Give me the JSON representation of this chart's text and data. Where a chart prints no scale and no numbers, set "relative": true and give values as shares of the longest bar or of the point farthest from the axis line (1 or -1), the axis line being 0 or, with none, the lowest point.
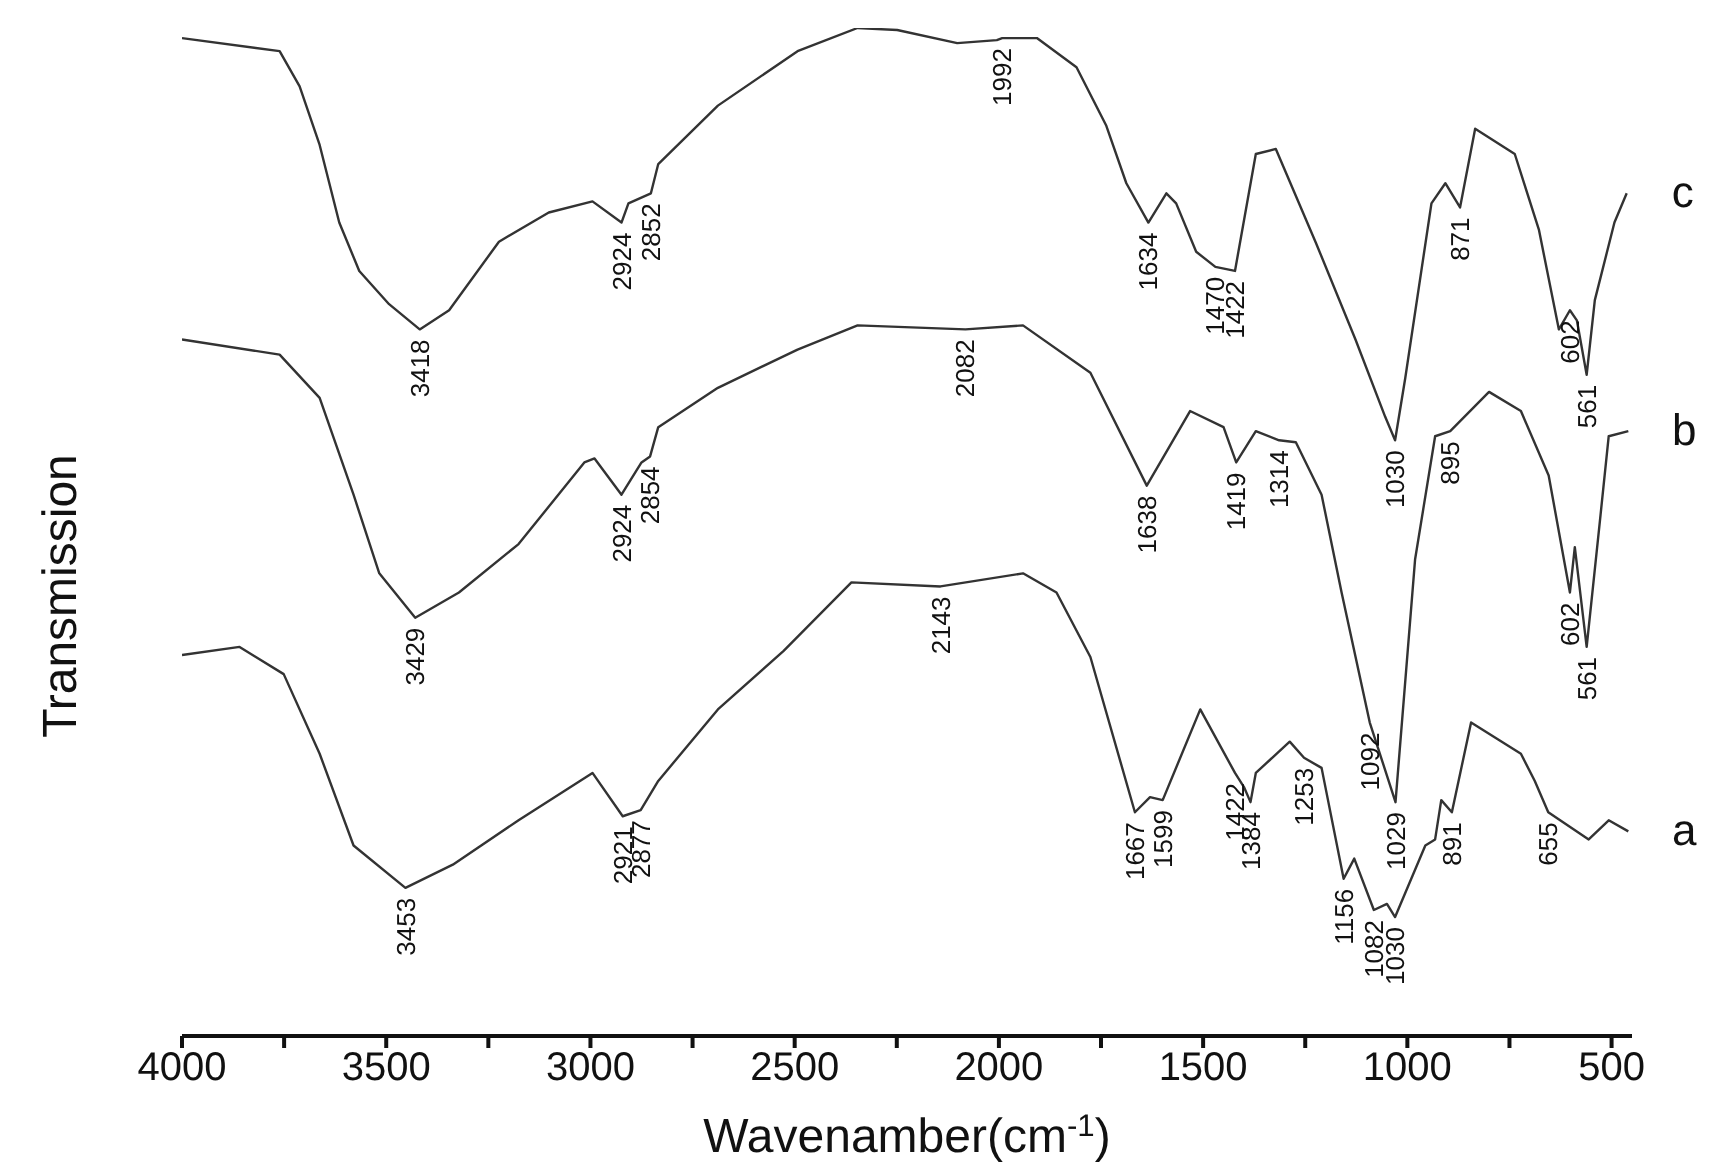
{
  "chart_data": {
    "type": "line",
    "relative": true,
    "xlabel": "Wavenamber(cm$^{-1}$)",
    "ylabel": "Transmission",
    "xlim": [
      4000,
      450
    ],
    "xticks": [
      4000,
      {
        "value": 3750,
        "label": null
      },
      3500,
      {
        "value": 3250,
        "label": null
      },
      3000,
      {
        "value": 2750,
        "label": null
      },
      2500,
      {
        "value": 2250,
        "label": null
      },
      2000,
      {
        "value": 1750,
        "label": null
      },
      1500,
      {
        "value": 1250,
        "label": null
      },
      1000,
      {
        "value": 750,
        "label": null
      },
      500
    ],
    "grid": false,
    "legend": false,
    "marker": "none",
    "line_style": "solid",
    "series": [
      {
        "name": "c",
        "color": "#333333",
        "x": [
          4000,
          3761,
          3712,
          3663,
          3615,
          3566,
          3493,
          3418,
          3346,
          3224,
          3102,
          2995,
          2924,
          2907,
          2852,
          2834,
          2688,
          2493,
          2346,
          2249,
          2102,
          2005,
          1992,
          1907,
          1810,
          1737,
          1688,
          1634,
          1590,
          1566,
          1517,
          1470,
          1422,
          1371,
          1322,
          1224,
          1127,
          1054,
          1030,
          1005,
          941,
          907,
          871,
          834,
          737,
          678,
          629,
          602,
          585,
          561,
          541,
          493,
          463
        ],
        "values": [
          0.99,
          0.977,
          0.942,
          0.884,
          0.807,
          0.759,
          0.726,
          0.701,
          0.72,
          0.788,
          0.817,
          0.828,
          0.807,
          0.826,
          0.836,
          0.865,
          0.923,
          0.977,
          1.0,
          0.998,
          0.985,
          0.988,
          0.99,
          0.99,
          0.961,
          0.903,
          0.846,
          0.807,
          0.836,
          0.826,
          0.778,
          0.763,
          0.759,
          0.875,
          0.88,
          0.787,
          0.691,
          0.614,
          0.591,
          0.653,
          0.826,
          0.846,
          0.822,
          0.9,
          0.875,
          0.8,
          0.701,
          0.72,
          0.71,
          0.656,
          0.73,
          0.807,
          0.836
        ]
      },
      {
        "name": "b",
        "color": "#333333",
        "x": [
          4000,
          3761,
          3663,
          3580,
          3517,
          3429,
          3322,
          3176,
          3015,
          2990,
          2924,
          2875,
          2854,
          2834,
          2688,
          2493,
          2346,
          2082,
          1941,
          1776,
          1638,
          1532,
          1450,
          1419,
          1371,
          1314,
          1273,
          1210,
          1161,
          1092,
          1029,
          981,
          932,
          895,
          800,
          722,
          654,
          602,
          590,
          561,
          527,
          507,
          459
        ],
        "values": [
          0.691,
          0.676,
          0.633,
          0.537,
          0.459,
          0.415,
          0.44,
          0.488,
          0.569,
          0.573,
          0.537,
          0.569,
          0.575,
          0.604,
          0.643,
          0.681,
          0.705,
          0.701,
          0.705,
          0.658,
          0.546,
          0.62,
          0.604,
          0.569,
          0.6,
          0.591,
          0.589,
          0.537,
          0.44,
          0.311,
          0.232,
          0.473,
          0.595,
          0.6,
          0.639,
          0.62,
          0.556,
          0.44,
          0.485,
          0.386,
          0.517,
          0.595,
          0.6
        ]
      },
      {
        "name": "a",
        "color": "#333333",
        "x": [
          4000,
          3859,
          3751,
          3663,
          3580,
          3453,
          3337,
          3176,
          2995,
          2921,
          2877,
          2834,
          2688,
          2527,
          2361,
          2143,
          1941,
          1859,
          1776,
          1667,
          1630,
          1599,
          1507,
          1422,
          1400,
          1384,
          1371,
          1288,
          1253,
          1210,
          1156,
          1130,
          1082,
          1050,
          1030,
          956,
          932,
          917,
          891,
          844,
          722,
          688,
          655,
          556,
          507,
          459
        ],
        "values": [
          0.378,
          0.386,
          0.359,
          0.28,
          0.189,
          0.147,
          0.17,
          0.214,
          0.261,
          0.218,
          0.224,
          0.253,
          0.324,
          0.382,
          0.45,
          0.446,
          0.459,
          0.44,
          0.376,
          0.222,
          0.237,
          0.234,
          0.324,
          0.261,
          0.247,
          0.232,
          0.261,
          0.292,
          0.276,
          0.266,
          0.156,
          0.176,
          0.125,
          0.131,
          0.118,
          0.189,
          0.195,
          0.234,
          0.222,
          0.311,
          0.28,
          0.253,
          0.222,
          0.195,
          0.214,
          0.203
        ]
      }
    ],
    "annotations": [
      {
        "text": "3418",
        "x": 3418,
        "y": 0.701
      },
      {
        "text": "2924",
        "x": 2924,
        "y": 0.807
      },
      {
        "text": "2852",
        "x": 2852,
        "y": 0.836
      },
      {
        "text": "1992",
        "x": 1992,
        "y": 0.99
      },
      {
        "text": "1634",
        "x": 1634,
        "y": 0.807
      },
      {
        "text": "1470",
        "x": 1470,
        "y": 0.763
      },
      {
        "text": "1422",
        "x": 1422,
        "y": 0.759
      },
      {
        "text": "1030",
        "x": 1030,
        "y": 0.591
      },
      {
        "text": "871",
        "x": 871,
        "y": 0.822
      },
      {
        "text": "602",
        "x": 602,
        "y": 0.72
      },
      {
        "text": "561",
        "x": 561,
        "y": 0.656
      },
      {
        "text": "3429",
        "x": 3429,
        "y": 0.415
      },
      {
        "text": "2924",
        "x": 2924,
        "y": 0.537
      },
      {
        "text": "2854",
        "x": 2854,
        "y": 0.575
      },
      {
        "text": "2082",
        "x": 2082,
        "y": 0.701
      },
      {
        "text": "1638",
        "x": 1638,
        "y": 0.546
      },
      {
        "text": "1419",
        "x": 1419,
        "y": 0.569
      },
      {
        "text": "1314",
        "x": 1314,
        "y": 0.591
      },
      {
        "text": "1092",
        "x": 1092,
        "y": 0.311
      },
      {
        "text": "1029",
        "x": 1029,
        "y": 0.232
      },
      {
        "text": "895",
        "x": 895,
        "y": 0.6
      },
      {
        "text": "602",
        "x": 602,
        "y": 0.44
      },
      {
        "text": "561",
        "x": 561,
        "y": 0.386
      },
      {
        "text": "3453",
        "x": 3453,
        "y": 0.147
      },
      {
        "text": "2921",
        "x": 2921,
        "y": 0.218
      },
      {
        "text": "2877",
        "x": 2877,
        "y": 0.224
      },
      {
        "text": "2143",
        "x": 2143,
        "y": 0.446
      },
      {
        "text": "1667",
        "x": 1667,
        "y": 0.222
      },
      {
        "text": "1599",
        "x": 1599,
        "y": 0.234
      },
      {
        "text": "1422",
        "x": 1422,
        "y": 0.261
      },
      {
        "text": "1384",
        "x": 1384,
        "y": 0.232
      },
      {
        "text": "1253",
        "x": 1253,
        "y": 0.276
      },
      {
        "text": "1156",
        "x": 1156,
        "y": 0.156
      },
      {
        "text": "1082",
        "x": 1082,
        "y": 0.125
      },
      {
        "text": "1030",
        "x": 1030,
        "y": 0.118
      },
      {
        "text": "891",
        "x": 891,
        "y": 0.222
      },
      {
        "text": "655",
        "x": 655,
        "y": 0.222
      }
    ]
  }
}
